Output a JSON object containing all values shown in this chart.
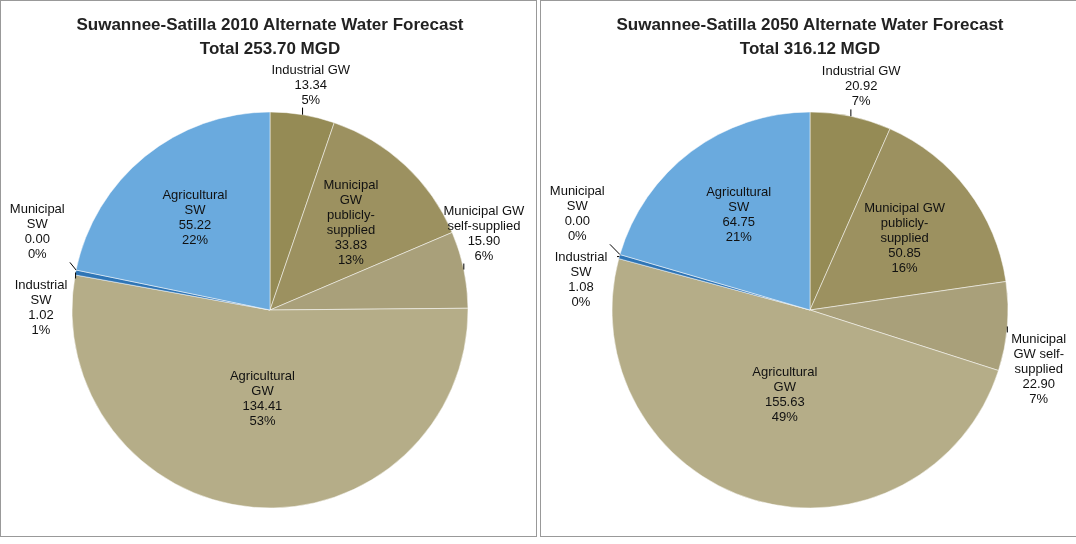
{
  "chart_data": [
    {
      "type": "pie",
      "title": "Suwannee-Satilla 2010 Alternate Water Forecast\nTotal 253.70 MGD",
      "categories": [
        "Industrial GW",
        "Municipal\nGW\npublicly-\nsupplied",
        "Municipal GW\nself-supplied",
        "Agricultural\nGW",
        "Industrial\nSW",
        "Municipal\nSW",
        "Agricultural\nSW"
      ],
      "values": [
        13.34,
        33.83,
        15.9,
        134.41,
        1.02,
        0.0,
        55.22
      ],
      "value_labels": [
        "13.34\n5%",
        "33.83\n13%",
        "15.90\n6%",
        "134.41\n53%",
        "1.02\n1%",
        "0.00\n0%",
        "55.22\n22%"
      ],
      "colors": [
        "#958b55",
        "#9c9160",
        "#a9a07a",
        "#b5ad88",
        "#2e75b6",
        "#4bacc6",
        "#6aaade"
      ]
    },
    {
      "type": "pie",
      "title": "Suwannee-Satilla 2050 Alternate Water Forecast\nTotal 316.12 MGD",
      "categories": [
        "Industrial GW",
        "Municipal GW\npublicly-\nsupplied",
        "Municipal\nGW self-\nsupplied",
        "Agricultural\nGW",
        "Industrial\nSW",
        "Municipal\nSW",
        "Agricultural\nSW"
      ],
      "values": [
        20.92,
        50.85,
        22.9,
        155.63,
        1.08,
        0.0,
        64.75
      ],
      "value_labels": [
        "20.92\n7%",
        "50.85\n16%",
        "22.90\n7%",
        "155.63\n49%",
        "1.08\n0%",
        "0.00\n0%",
        "64.75\n21%"
      ],
      "colors": [
        "#958b55",
        "#9c9160",
        "#a9a07a",
        "#b5ad88",
        "#2e75b6",
        "#4bacc6",
        "#6aaade"
      ]
    }
  ]
}
